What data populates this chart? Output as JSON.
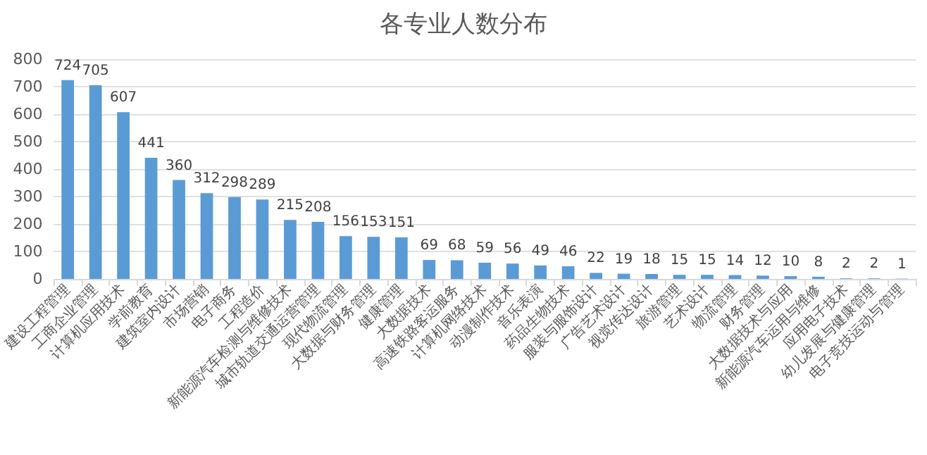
{
  "chart_data": {
    "type": "bar",
    "title": "各专业人数分布",
    "categories": [
      "建设工程管理",
      "工商企业管理",
      "计算机应用技术",
      "学前教育",
      "建筑室内设计",
      "市场营销",
      "电子商务",
      "工程造价",
      "新能源汽车检测与维修技术",
      "城市轨道交通运营管理",
      "现代物流管理",
      "大数据与财务管理",
      "健康管理",
      "大数据技术",
      "高速铁路客运服务",
      "计算机网络技术",
      "动漫制作技术",
      "音乐表演",
      "药品生物技术",
      "服装与服饰设计",
      "广告艺术设计",
      "视觉传达设计",
      "旅游管理",
      "艺术设计",
      "物流管理",
      "财务管理",
      "大数据技术与应用",
      "新能源汽车运用与维修",
      "应用电子技术",
      "幼儿发展与健康管理",
      "电子竞技运动与管理"
    ],
    "values": [
      724,
      705,
      607,
      441,
      360,
      312,
      298,
      289,
      215,
      208,
      156,
      153,
      151,
      69,
      68,
      59,
      56,
      49,
      46,
      22,
      19,
      18,
      15,
      15,
      14,
      12,
      10,
      8,
      2,
      2,
      1
    ],
    "color": "#5b9bd5",
    "ylim": [
      0,
      800
    ],
    "yticks": [
      0,
      100,
      200,
      300,
      400,
      500,
      600,
      700,
      800
    ],
    "grid": "y",
    "data_labels": true
  }
}
